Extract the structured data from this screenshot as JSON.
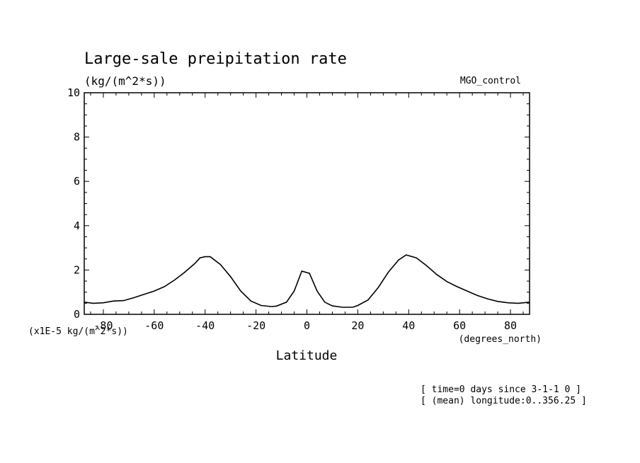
{
  "chart_data": {
    "type": "line",
    "title": "Large-sale preipitation rate",
    "units": "(kg/(m^2*s))",
    "run_label": "MGO_control",
    "scale_label": "(x1E-5 kg/(m^2*s))",
    "xlabel": "Latitude",
    "xunit": "(degrees_north)",
    "footer": [
      "[ time=0 days since 3-1-1 0 ]",
      "[ (mean) longitude:0..356.25 ]"
    ],
    "xlim": [
      -87.5,
      87.5
    ],
    "ylim": [
      0,
      10
    ],
    "x_ticks": [
      -80,
      -60,
      -40,
      -20,
      0,
      20,
      40,
      60,
      80
    ],
    "x_tick_labels": [
      "-80",
      "-60",
      "-40",
      "-20",
      "0",
      "20",
      "40",
      "60",
      "80"
    ],
    "y_ticks": [
      0,
      2,
      4,
      6,
      8,
      10
    ],
    "y_tick_labels": [
      "0",
      "2",
      "4",
      "6",
      "8",
      "10"
    ],
    "grid": false,
    "series": [
      {
        "x": [
          -87.5,
          -84,
          -80,
          -76,
          -72,
          -68,
          -64,
          -60,
          -56,
          -52,
          -48,
          -44,
          -42,
          -40,
          -38,
          -34,
          -30,
          -26,
          -22,
          -18,
          -14,
          -12,
          -8,
          -5,
          -2,
          1,
          4,
          7,
          10,
          14,
          18,
          20,
          24,
          28,
          32,
          36,
          39,
          43,
          47,
          51,
          55,
          59,
          63,
          67,
          71,
          75,
          79,
          83,
          87.5
        ],
        "y": [
          0.55,
          0.5,
          0.52,
          0.6,
          0.62,
          0.75,
          0.9,
          1.05,
          1.25,
          1.55,
          1.9,
          2.3,
          2.55,
          2.6,
          2.6,
          2.25,
          1.7,
          1.05,
          0.6,
          0.4,
          0.35,
          0.37,
          0.55,
          1.05,
          1.95,
          1.85,
          1.05,
          0.55,
          0.38,
          0.32,
          0.32,
          0.4,
          0.65,
          1.2,
          1.9,
          2.45,
          2.68,
          2.55,
          2.2,
          1.8,
          1.48,
          1.25,
          1.05,
          0.85,
          0.7,
          0.58,
          0.52,
          0.5,
          0.55
        ]
      }
    ]
  }
}
